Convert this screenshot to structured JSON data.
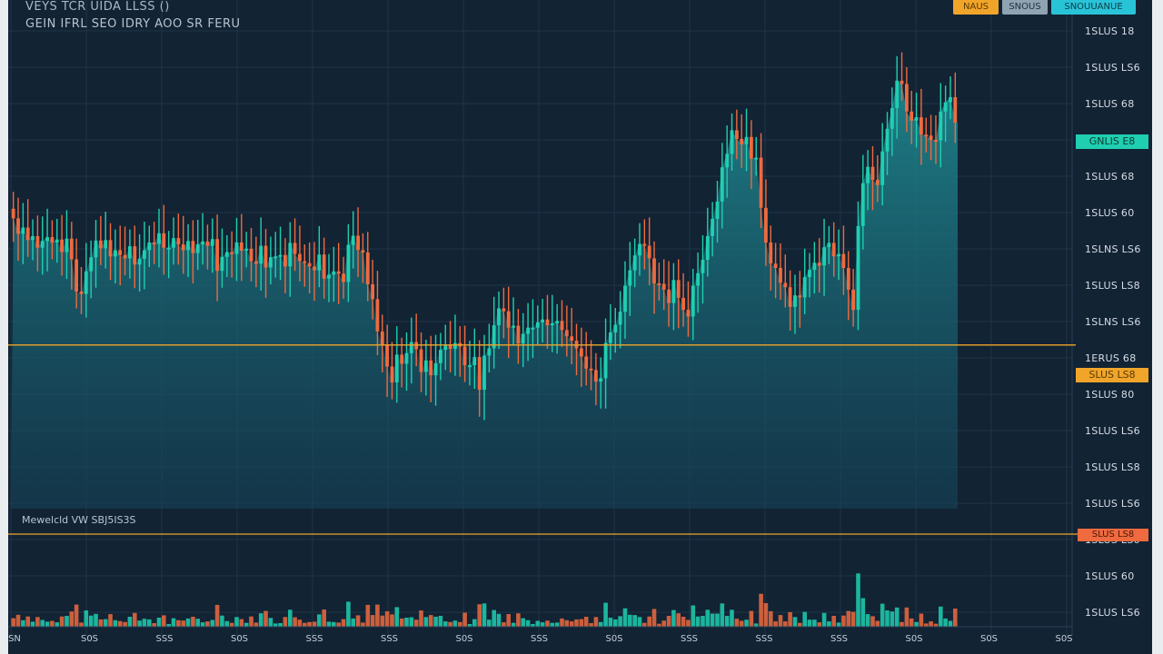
{
  "header": {
    "title": "VEYS TCR UIDA LLSS ()",
    "subtitle": "GEIN IFRL SEO IDRY AOO  SR FERU"
  },
  "toolbar": {
    "buttons": [
      "NAUS",
      "SNOUS",
      "SNOUUANUE"
    ]
  },
  "volume": {
    "label": "Mewelcld VW  SBJ5IS3S"
  },
  "axis_labels": {
    "y": [
      "1SLUS 18",
      "1SLUS LS6",
      "1SLUS 68",
      "GNLIS E8",
      "1SLUS 68",
      "1SLUS 60",
      "1SLNS LS6",
      "1SLUS LS8",
      "1SLNS LS6",
      "1ERUS 68",
      "1SLUS 80",
      "1SLUS LS6",
      "1SLUS LS8",
      "1SLUS LS6",
      "1SLUS LS0",
      "1SLUS 60",
      "1SLUS LS6"
    ],
    "x": [
      "SN",
      "S0S",
      "SSS",
      "S0S",
      "SSS",
      "SSS",
      "S0S",
      "SSS",
      "S0S",
      "SSS",
      "SSS",
      "SSS",
      "S0S",
      "S0S",
      "S0S"
    ]
  },
  "tags": {
    "last_price": "GNLIS E8",
    "level": "SLUS LS8",
    "volume_level": "SLUS LS8"
  },
  "colors": {
    "background": "#122334",
    "up": "#1fcfb0",
    "down": "#ef6a3f",
    "level_line": "#f0a52a",
    "area": "#1f8f95"
  },
  "chart_data": {
    "type": "candlestick",
    "y_range": [
      0,
      100
    ],
    "level": 34,
    "grid": true,
    "close_series": [
      60.3,
      57.1,
      58.4,
      55.8,
      56.6,
      54.2,
      55.6,
      56.4,
      55.3,
      55.9,
      53.3,
      56.1,
      51.8,
      45.1,
      44.6,
      49.3,
      52.2,
      55.7,
      54.1,
      55.8,
      52.4,
      53.7,
      52.7,
      52.0,
      54.5,
      50.7,
      51.9,
      53.7,
      55.3,
      55.0,
      57.2,
      54.2,
      54.2,
      56.2,
      54.9,
      53.7,
      55.6,
      53.1,
      54.9,
      55.5,
      54.6,
      56.0,
      49.4,
      52.3,
      53.3,
      52.9,
      55.3,
      53.6,
      54.0,
      51.4,
      50.9,
      54.6,
      50.1,
      52.2,
      52.4,
      52.7,
      50.3,
      55.2,
      52.9,
      51.4,
      51.0,
      50.3,
      49.5,
      52.8,
      47.8,
      48.6,
      49.3,
      48.8,
      47.1,
      54.8,
      56.7,
      53.7,
      53.2,
      46.6,
      43.5,
      36.8,
      33.9,
      29.5,
      26.2,
      32.0,
      30.1,
      32.3,
      34.6,
      33.1,
      28.4,
      30.8,
      27.7,
      30.2,
      33.0,
      33.9,
      33.2,
      34.4,
      33.7,
      29.8,
      29.8,
      31.5,
      24.7,
      31.8,
      33.3,
      38.1,
      41.6,
      41.0,
      37.6,
      38.0,
      34.3,
      36.3,
      37.6,
      37.6,
      38.7,
      39.3,
      38.1,
      38.5,
      39.0,
      37.1,
      35.8,
      34.9,
      33.3,
      31.6,
      29.1,
      28.8,
      26.4,
      27.1,
      34.4,
      36.6,
      38.2,
      40.9,
      46.3,
      49.5,
      52.6,
      55.0,
      54.6,
      52.0,
      46.8,
      46.7,
      45.5,
      42.7,
      47.5,
      43.8,
      41.3,
      39.9,
      46.3,
      48.9,
      51.7,
      56.6,
      60.2,
      63.8,
      70.9,
      73.7,
      78.6,
      76.8,
      75.7,
      77.2,
      72.7,
      72.9,
      62.5,
      55.3,
      50.9,
      50.0,
      46.9,
      46.0,
      41.9,
      44.3,
      43.9,
      48.1,
      49.6,
      51.1,
      50.5,
      54.3,
      55.2,
      52.4,
      52.9,
      50.0,
      45.5,
      41.3,
      58.7,
      67.6,
      71.0,
      68.3,
      67.2,
      74.2,
      78.9,
      83.2,
      88.9,
      88.2,
      82.5,
      80.6,
      81.3,
      77.7,
      77.5,
      76.6,
      76.5,
      82.5,
      84.4,
      85.5,
      80.2
    ]
  }
}
